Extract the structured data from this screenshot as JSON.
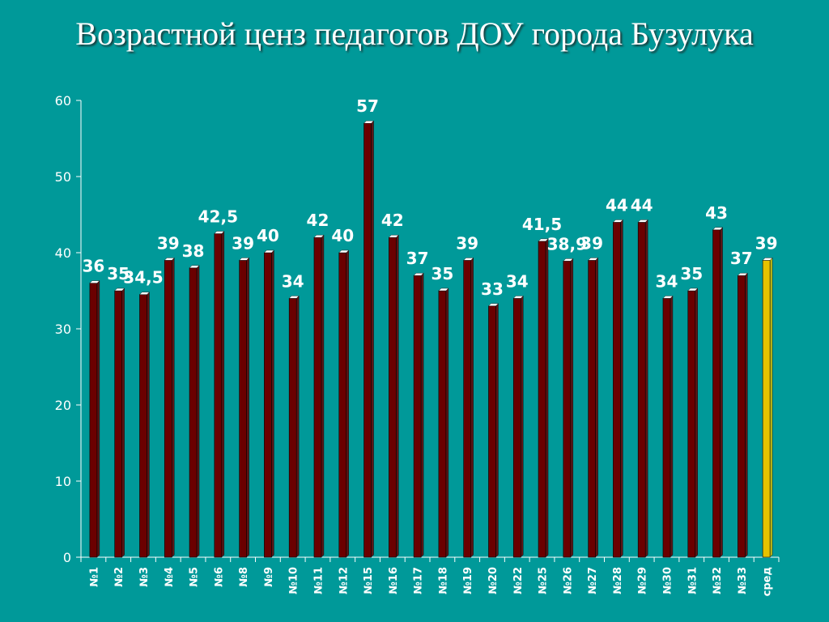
{
  "title": "Возрастной ценз педагогов ДОУ города Бузулука",
  "colors": {
    "background": "#009999",
    "bar": "#6b0000",
    "bar_top": "#ffffff",
    "highlight_bar": "#e6c200",
    "axis": "#ffffff",
    "text": "#ffffff"
  },
  "chart_data": {
    "type": "bar",
    "title": "Возрастной ценз педагогов ДОУ города Бузулука",
    "xlabel": "",
    "ylabel": "",
    "ylim": [
      0,
      60
    ],
    "yticks": [
      "0",
      "10",
      "20",
      "30",
      "40",
      "50",
      "60"
    ],
    "grid": false,
    "legend": "none",
    "categories": [
      "№1",
      "№2",
      "№3",
      "№4",
      "№5",
      "№6",
      "№8",
      "№9",
      "№10",
      "№11",
      "№12",
      "№15",
      "№16",
      "№17",
      "№18",
      "№19",
      "№20",
      "№22",
      "№25",
      "№26",
      "№27",
      "№28",
      "№29",
      "№30",
      "№31",
      "№32",
      "№33",
      "сред"
    ],
    "values": [
      36,
      35,
      34.5,
      39,
      38,
      42.5,
      39,
      40,
      34,
      42,
      40,
      57,
      42,
      37,
      35,
      39,
      33,
      34,
      41.5,
      38.9,
      39,
      44,
      44,
      34,
      35,
      43,
      37,
      39
    ],
    "value_labels": [
      "36",
      "35",
      "34,5",
      "39",
      "38",
      "42,5",
      "39",
      "40",
      "34",
      "42",
      "40",
      "57",
      "42",
      "37",
      "35",
      "39",
      "33",
      "34",
      "41,5",
      "38,9",
      "39",
      "44",
      "44",
      "34",
      "35",
      "43",
      "37",
      "39"
    ],
    "highlight_index": 27
  }
}
